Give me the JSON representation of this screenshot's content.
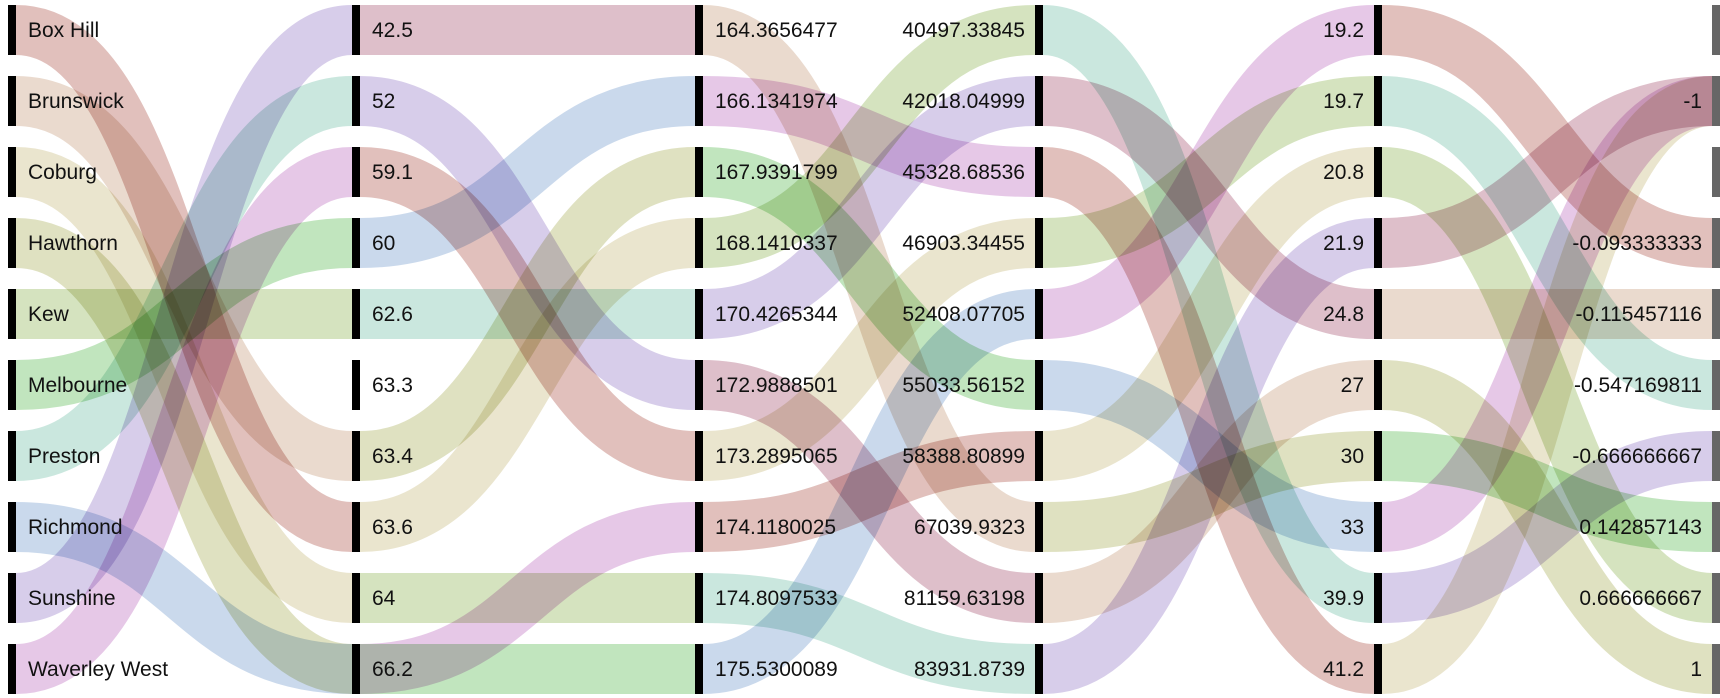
{
  "chart_data": {
    "type": "sankey-parallel",
    "title": "",
    "axes": [
      {
        "labels": [
          "Box Hill",
          "Brunswick",
          "Coburg",
          "Hawthorn",
          "Kew",
          "Melbourne",
          "Preston",
          "Richmond",
          "Sunshine",
          "Waverley West"
        ]
      },
      {
        "labels": [
          "42.5",
          "52",
          "59.1",
          "60",
          "62.6",
          "63.3",
          "63.4",
          "63.6",
          "64",
          "66.2"
        ]
      },
      {
        "labels": [
          "164.3656477",
          "166.1341974",
          "167.9391799",
          "168.1410337",
          "170.4265344",
          "172.9888501",
          "173.2895065",
          "174.1180025",
          "174.8097533",
          "175.5300089"
        ]
      },
      {
        "labels": [
          "40497.33845",
          "42018.04999",
          "45328.68536",
          "46903.34455",
          "52408.07705",
          "55033.56152",
          "58388.80899",
          "67039.9323",
          "81159.63198",
          "83931.8739"
        ]
      },
      {
        "labels": [
          "19.2",
          "19.7",
          "20.8",
          "21.9",
          "24.8",
          "27",
          "30",
          "33",
          "39.9",
          "41.2"
        ]
      },
      {
        "labels": [
          "",
          "-1",
          "",
          "-0.093333333",
          "-0.115457116",
          "-0.547169811",
          "-0.666666667",
          "0.142857143",
          "0.666666667",
          "1"
        ]
      }
    ],
    "records": [
      {
        "name": "Box Hill",
        "values": [
          "63.6",
          "168.1410337",
          "40497.33845",
          "39.9",
          "-0.666666667"
        ]
      },
      {
        "name": "Brunswick",
        "values": [
          "63.4",
          "167.9391799",
          "55033.56152",
          "33",
          "-1"
        ]
      },
      {
        "name": "Coburg",
        "values": [
          "64",
          "174.8097533",
          "83931.8739",
          "21.9",
          "-1"
        ]
      },
      {
        "name": "Hawthorn",
        "values": [
          "66.2",
          "175.5300089",
          "52408.07705",
          "19.2",
          "-0.093333333"
        ]
      },
      {
        "name": "Kew",
        "values": [
          "62.6",
          "170.4265344",
          "42018.04999",
          "24.8",
          "-0.115457116"
        ]
      },
      {
        "name": "Melbourne",
        "values": [
          "60",
          "166.1341974",
          "45328.68536",
          "41.2",
          "-1"
        ]
      },
      {
        "name": "Preston",
        "values": [
          "52",
          "172.9888501",
          "81159.63198",
          "27",
          "1"
        ]
      },
      {
        "name": "Richmond",
        "values": [
          "66.2",
          "174.1180025",
          "58388.80899",
          "20.8",
          "0.666666667"
        ]
      },
      {
        "name": "Sunshine",
        "values": [
          "42.5",
          "164.3656477",
          "67039.9323",
          "30",
          "0.142857143"
        ]
      },
      {
        "name": "Waverley West",
        "values": [
          "59.1",
          "173.2895065",
          "46903.34455",
          "19.7",
          "-0.547169811"
        ]
      }
    ],
    "colors": [
      "#c98d85",
      "#d9bba6",
      "#d8cfa5",
      "#c4c98e",
      "#b2cc8a",
      "#8ecf88",
      "#9fd3c2",
      "#9fb9dd",
      "#b6a4d9",
      "#d29ad4",
      "#c28a9e"
    ]
  }
}
